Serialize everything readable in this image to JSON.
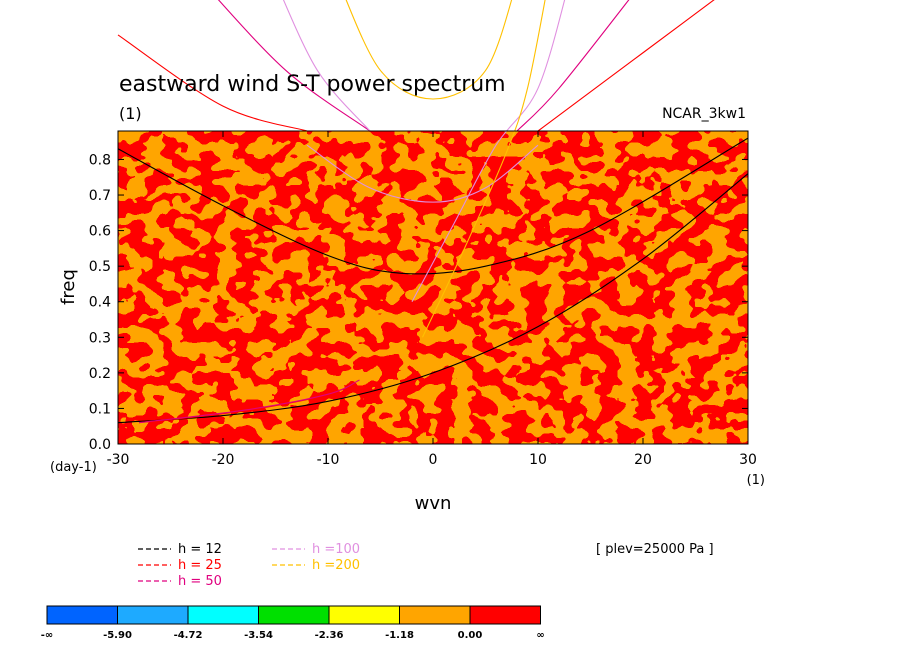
{
  "chart_data": {
    "type": "heatmap",
    "title": "eastward wind S-T power spectrum",
    "subtitle_left": "(1)",
    "subtitle_right": "NCAR_3kw1",
    "xlabel": "wvn",
    "ylabel": "freq",
    "x_unit": "(1)",
    "y_unit": "(day-1)",
    "xlim": [
      -30,
      30
    ],
    "ylim": [
      0,
      0.88
    ],
    "x_ticks": [
      "-30",
      "-20",
      "-10",
      "0",
      "10",
      "20",
      "30"
    ],
    "y_ticks": [
      "0.0",
      "0.1",
      "0.2",
      "0.3",
      "0.4",
      "0.5",
      "0.6",
      "0.7",
      "0.8"
    ],
    "field_colors": [
      "#ff0000",
      "#ffa500"
    ],
    "annotation": "[ plev=25000 Pa ]",
    "dispersion_legend": [
      {
        "label": "h = 12",
        "color": "#000000"
      },
      {
        "label": "h = 25",
        "color": "#ff0000"
      },
      {
        "label": "h = 50",
        "color": "#e0007f"
      },
      {
        "label": "h =100",
        "color": "#e090e0"
      },
      {
        "label": "h =200",
        "color": "#ffc000"
      }
    ],
    "dispersion_curves": [
      {
        "h": 12,
        "color": "#000000",
        "points": [
          [
            -30,
            0.06
          ],
          [
            -20,
            0.08
          ],
          [
            -10,
            0.12
          ],
          [
            0,
            0.2
          ],
          [
            10,
            0.33
          ],
          [
            20,
            0.52
          ],
          [
            30,
            0.76
          ]
        ]
      },
      {
        "h": 12,
        "color": "#000000",
        "points": [
          [
            -30,
            0.83
          ],
          [
            -20,
            0.67
          ],
          [
            -10,
            0.53
          ],
          [
            -3,
            0.48
          ],
          [
            5,
            0.5
          ],
          [
            15,
            0.6
          ],
          [
            30,
            0.86
          ]
        ]
      },
      {
        "h": 25,
        "color": "#ff0000",
        "points": [
          [
            -30,
            1.15
          ],
          [
            -20,
            0.95
          ],
          [
            -12,
            0.88
          ]
        ]
      },
      {
        "h": 25,
        "color": "#ff0000",
        "points": [
          [
            10,
            0.88
          ],
          [
            20,
            1.1
          ],
          [
            30,
            1.32
          ]
        ]
      },
      {
        "h": 25,
        "color": "#ff0000",
        "points": [
          [
            -28,
            0.06
          ],
          [
            -20,
            0.085
          ],
          [
            -12,
            0.125
          ],
          [
            -8,
            0.16
          ]
        ]
      },
      {
        "h": 50,
        "color": "#e0007f",
        "points": [
          [
            -22,
            1.3
          ],
          [
            -14,
            1.05
          ],
          [
            -6,
            0.88
          ]
        ]
      },
      {
        "h": 50,
        "color": "#e0007f",
        "points": [
          [
            8,
            0.88
          ],
          [
            12,
            1.0
          ],
          [
            20,
            1.3
          ]
        ]
      },
      {
        "h": 50,
        "color": "#e0007f",
        "points": [
          [
            -28,
            0.06
          ],
          [
            -18,
            0.095
          ],
          [
            -10,
            0.14
          ],
          [
            -7,
            0.18
          ]
        ]
      },
      {
        "h": 100,
        "color": "#e090e0",
        "points": [
          [
            -15,
            1.3
          ],
          [
            -11,
            1.05
          ],
          [
            -6,
            0.88
          ]
        ]
      },
      {
        "h": 100,
        "color": "#e090e0",
        "points": [
          [
            -12,
            0.84
          ],
          [
            -6,
            0.72
          ],
          [
            0,
            0.68
          ],
          [
            5,
            0.72
          ],
          [
            10,
            0.84
          ]
        ]
      },
      {
        "h": 100,
        "color": "#e090e0",
        "points": [
          [
            -2,
            0.4
          ],
          [
            2,
            0.62
          ],
          [
            6,
            0.84
          ],
          [
            10,
            1.0
          ],
          [
            13,
            1.3
          ]
        ]
      },
      {
        "h": 200,
        "color": "#ffc000",
        "points": [
          [
            -9,
            1.3
          ],
          [
            -5,
            1.05
          ],
          [
            0,
            0.97
          ],
          [
            5,
            1.05
          ],
          [
            8,
            1.3
          ]
        ]
      },
      {
        "h": 200,
        "color": "#ffc000",
        "points": [
          [
            -1,
            0.3
          ],
          [
            3,
            0.55
          ],
          [
            7,
            0.82
          ],
          [
            9,
            1.0
          ],
          [
            11,
            1.3
          ]
        ]
      }
    ]
  },
  "colorbar": {
    "colors": [
      "#0064ff",
      "#1eaaff",
      "#00ffff",
      "#00e000",
      "#ffff00",
      "#ffa500",
      "#ff0000"
    ],
    "labels": [
      "-∞",
      "-5.90",
      "-4.72",
      "-3.54",
      "-2.36",
      "-1.18",
      "0.00",
      "∞"
    ]
  }
}
